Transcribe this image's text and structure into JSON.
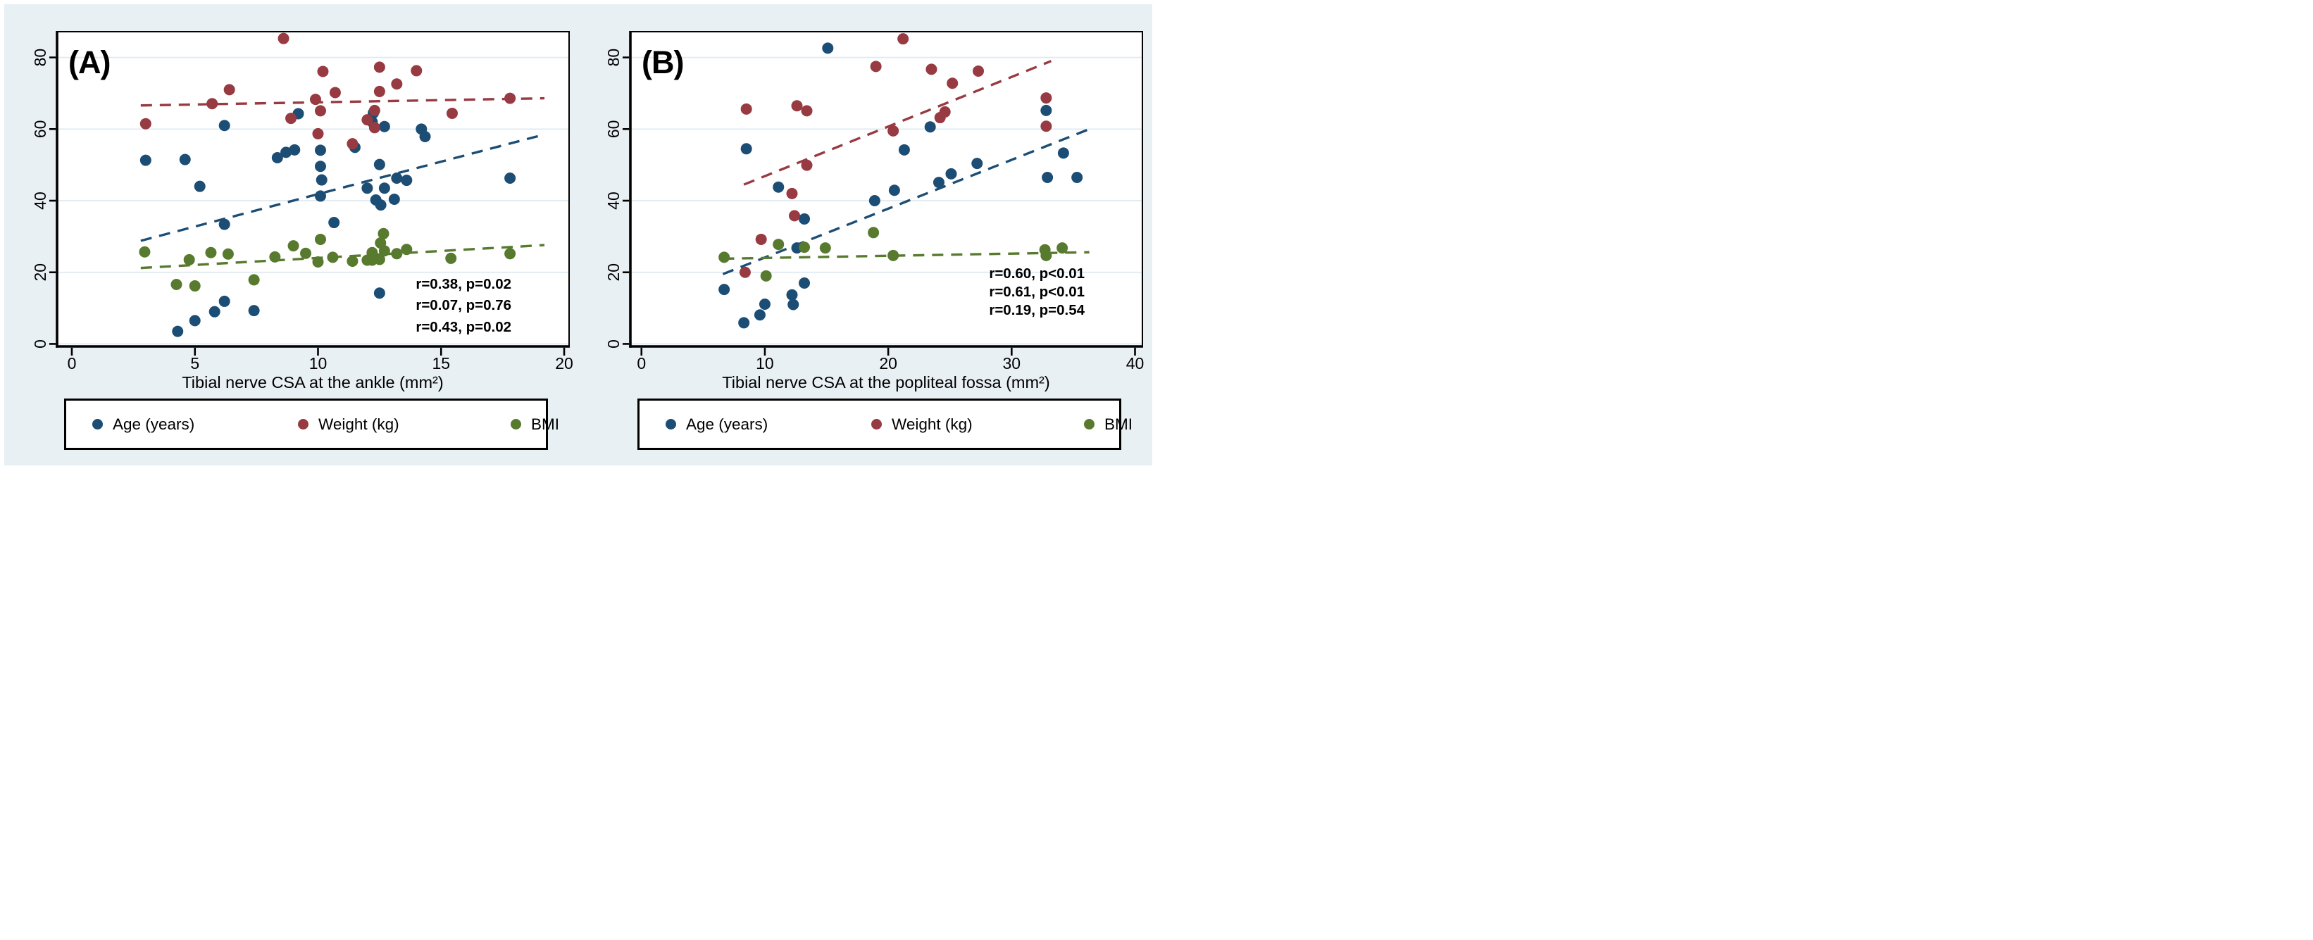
{
  "figure": {
    "background": "#e9f0f4",
    "plot_background": "#ffffff",
    "grid_color": "#dee9f1",
    "frame_color": "#000000"
  },
  "legend": {
    "items": [
      {
        "label": "Age (years)",
        "color": "#1c4d74"
      },
      {
        "label": "Weight (kg)",
        "color": "#983a42"
      },
      {
        "label": "BMI",
        "color": "#587a2e"
      }
    ]
  },
  "chart_data": [
    {
      "id": "A",
      "type": "scatter",
      "title": "(A)",
      "xlabel": "Tibial nerve CSA at the ankle (mm²)",
      "ylabel": "",
      "xlim": [
        -0.6,
        20.2
      ],
      "ylim": [
        -0.7,
        87.2
      ],
      "xticks": [
        0,
        5,
        10,
        15,
        20
      ],
      "yticks": [
        0,
        20,
        40,
        60,
        80
      ],
      "grid": true,
      "series": [
        {
          "name": "Age (years)",
          "key": "age",
          "color": "#1c4d74",
          "points": [
            [
              3,
              51.3
            ],
            [
              4.3,
              3.5
            ],
            [
              4.6,
              51.5
            ],
            [
              5,
              6.5
            ],
            [
              5.2,
              44
            ],
            [
              5.8,
              9
            ],
            [
              6.2,
              61
            ],
            [
              6.2,
              33.4
            ],
            [
              6.2,
              11.9
            ],
            [
              7.4,
              9.3
            ],
            [
              8.35,
              52
            ],
            [
              8.7,
              53.5
            ],
            [
              9.05,
              54.2
            ],
            [
              9.2,
              64.3
            ],
            [
              10.1,
              54.1
            ],
            [
              10.1,
              49.6
            ],
            [
              10.15,
              45.8
            ],
            [
              10.1,
              41.3
            ],
            [
              10.65,
              33.9
            ],
            [
              11.5,
              54.9
            ],
            [
              12.2,
              62
            ],
            [
              12.25,
              64.5
            ],
            [
              12.7,
              60.7
            ],
            [
              12.5,
              50.1
            ],
            [
              12,
              43.5
            ],
            [
              12.7,
              43.5
            ],
            [
              13.2,
              46.3
            ],
            [
              13.6,
              45.7
            ],
            [
              12.35,
              40.2
            ],
            [
              12.55,
              38.8
            ],
            [
              13.1,
              40.4
            ],
            [
              12.5,
              14.2
            ],
            [
              14.2,
              60
            ],
            [
              14.35,
              57.9
            ],
            [
              17.8,
              46.3
            ]
          ],
          "trend": [
            [
              2.8,
              28.8
            ],
            [
              19.2,
              58.5
            ]
          ]
        },
        {
          "name": "Weight (kg)",
          "key": "weight",
          "color": "#983a42",
          "points": [
            [
              3,
              61.5
            ],
            [
              5.7,
              67.1
            ],
            [
              6.4,
              71
            ],
            [
              8.6,
              85.3
            ],
            [
              8.9,
              63
            ],
            [
              9.9,
              68.3
            ],
            [
              10.1,
              65.1
            ],
            [
              10,
              58.7
            ],
            [
              10.2,
              76.1
            ],
            [
              10.7,
              70.2
            ],
            [
              11.4,
              55.9
            ],
            [
              12,
              62.6
            ],
            [
              12.3,
              65.2
            ],
            [
              12.3,
              60.4
            ],
            [
              12.5,
              70.5
            ],
            [
              12.5,
              77.3
            ],
            [
              13.2,
              72.6
            ],
            [
              14,
              76.3
            ],
            [
              15.45,
              64.4
            ],
            [
              17.8,
              68.6
            ]
          ],
          "trend": [
            [
              2.8,
              66.6
            ],
            [
              19.2,
              68.6
            ]
          ]
        },
        {
          "name": "BMI",
          "key": "bmi",
          "color": "#587a2e",
          "points": [
            [
              2.96,
              25.7
            ],
            [
              4.25,
              16.6
            ],
            [
              4.77,
              23.5
            ],
            [
              5,
              16.2
            ],
            [
              5.65,
              25.5
            ],
            [
              6.35,
              25.1
            ],
            [
              7.4,
              17.9
            ],
            [
              8.25,
              24.3
            ],
            [
              9,
              27.4
            ],
            [
              9.5,
              25.3
            ],
            [
              10,
              22.9
            ],
            [
              10.1,
              29.2
            ],
            [
              10.6,
              24.2
            ],
            [
              11.4,
              23.1
            ],
            [
              12,
              23.4
            ],
            [
              12.2,
              23.4
            ],
            [
              12.5,
              23.6
            ],
            [
              12.2,
              25.5
            ],
            [
              12.7,
              26
            ],
            [
              12.66,
              30.8
            ],
            [
              12.54,
              28.2
            ],
            [
              13.2,
              25.2
            ],
            [
              13.6,
              26.4
            ],
            [
              15.4,
              23.9
            ],
            [
              17.8,
              25.2
            ]
          ],
          "trend": [
            [
              2.8,
              21.2
            ],
            [
              19.2,
              27.6
            ]
          ]
        }
      ],
      "annotations": [
        {
          "text": "r=0.38, p=0.02",
          "color": "#1c4d74"
        },
        {
          "text": "r=0.07, p=0.76",
          "color": "#983a42"
        },
        {
          "text": "r=0.43, p=0.02",
          "color": "#587a2e"
        }
      ]
    },
    {
      "id": "B",
      "type": "scatter",
      "title": "(B)",
      "xlabel": "Tibial nerve CSA at the popliteal fossa (mm²)",
      "ylabel": "",
      "xlim": [
        -0.9,
        40.6
      ],
      "ylim": [
        -0.7,
        87.2
      ],
      "xticks": [
        0,
        10,
        20,
        30,
        40
      ],
      "yticks": [
        0,
        20,
        40,
        60,
        80
      ],
      "grid": true,
      "series": [
        {
          "name": "Age (years)",
          "key": "age",
          "color": "#1c4d74",
          "points": [
            [
              15.1,
              82.6
            ],
            [
              8.5,
              54.5
            ],
            [
              11.1,
              43.8
            ],
            [
              13.2,
              34.9
            ],
            [
              12.6,
              26.8
            ],
            [
              6.7,
              15.2
            ],
            [
              8.3,
              5.9
            ],
            [
              9.6,
              8.1
            ],
            [
              10,
              11.1
            ],
            [
              12.2,
              13.7
            ],
            [
              12.3,
              11
            ],
            [
              13.2,
              17
            ],
            [
              18.9,
              40
            ],
            [
              20.5,
              42.9
            ],
            [
              21.3,
              54.2
            ],
            [
              23.4,
              60.6
            ],
            [
              24.1,
              45.1
            ],
            [
              25.1,
              47.5
            ],
            [
              27.2,
              50.4
            ],
            [
              32.8,
              65.2
            ],
            [
              34.2,
              53.3
            ],
            [
              32.9,
              46.5
            ],
            [
              35.3,
              46.5
            ]
          ],
          "trend": [
            [
              6.6,
              19.5
            ],
            [
              36.3,
              60
            ]
          ]
        },
        {
          "name": "Weight (kg)",
          "key": "weight",
          "color": "#983a42",
          "points": [
            [
              21.2,
              85.2
            ],
            [
              19,
              77.5
            ],
            [
              23.5,
              76.7
            ],
            [
              27.3,
              76.2
            ],
            [
              25.2,
              72.8
            ],
            [
              32.8,
              68.7
            ],
            [
              24.6,
              64.8
            ],
            [
              24.2,
              63.2
            ],
            [
              8.5,
              65.6
            ],
            [
              12.6,
              66.5
            ],
            [
              13.4,
              65.1
            ],
            [
              32.8,
              60.8
            ],
            [
              20.4,
              59.5
            ],
            [
              13.4,
              49.9
            ],
            [
              12.2,
              42
            ],
            [
              12.4,
              35.8
            ],
            [
              9.7,
              29.2
            ],
            [
              8.4,
              20
            ]
          ],
          "trend": [
            [
              8.3,
              44.5
            ],
            [
              33.2,
              79
            ]
          ]
        },
        {
          "name": "BMI",
          "key": "bmi",
          "color": "#587a2e",
          "points": [
            [
              6.7,
              24.2
            ],
            [
              10.1,
              19
            ],
            [
              11.1,
              27.8
            ],
            [
              13.2,
              27
            ],
            [
              14.9,
              26.8
            ],
            [
              18.8,
              31.1
            ],
            [
              20.4,
              24.7
            ],
            [
              32.7,
              26.3
            ],
            [
              32.8,
              24.7
            ],
            [
              34.1,
              26.8
            ]
          ],
          "trend": [
            [
              6.6,
              23.8
            ],
            [
              36.3,
              25.6
            ]
          ]
        }
      ],
      "annotations": [
        {
          "text": "r=0.60, p<0.01",
          "color": "#1c4d74"
        },
        {
          "text": "r=0.61, p<0.01",
          "color": "#983a42"
        },
        {
          "text": "r=0.19, p=0.54",
          "color": "#587a2e"
        }
      ]
    }
  ]
}
